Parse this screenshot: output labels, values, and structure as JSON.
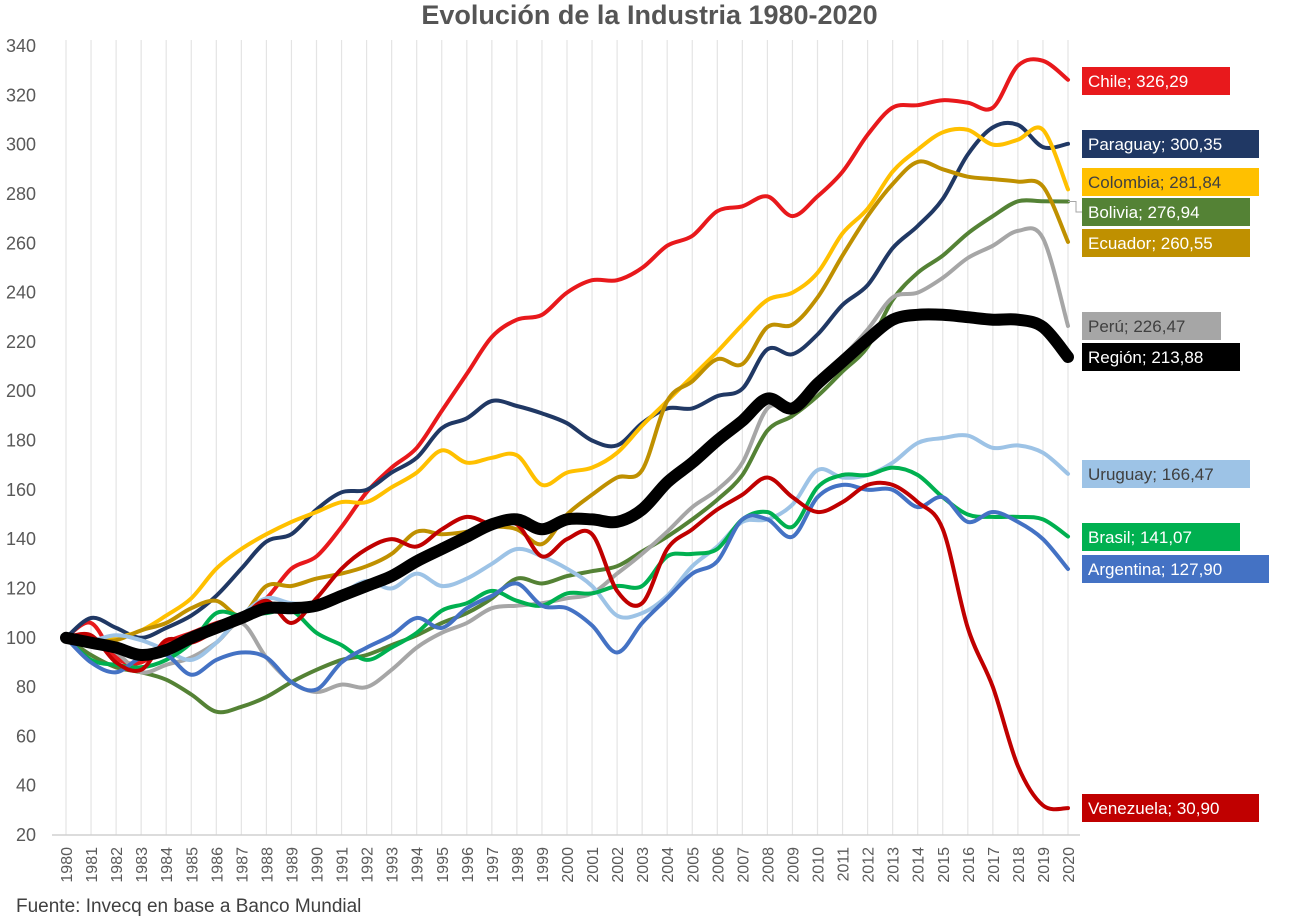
{
  "chart_data": {
    "type": "line",
    "title": "Evolución de la Industria 1980-2020",
    "source": "Fuente: Invecq en base a Banco Mundial",
    "ylim": [
      20,
      340
    ],
    "yticks": [
      20,
      40,
      60,
      80,
      100,
      120,
      140,
      160,
      180,
      200,
      220,
      240,
      260,
      280,
      300,
      320,
      340
    ],
    "x": [
      1980,
      1981,
      1982,
      1983,
      1984,
      1985,
      1986,
      1987,
      1988,
      1989,
      1990,
      1991,
      1992,
      1993,
      1994,
      1995,
      1996,
      1997,
      1998,
      1999,
      2000,
      2001,
      2002,
      2003,
      2004,
      2005,
      2006,
      2007,
      2008,
      2009,
      2010,
      2011,
      2012,
      2013,
      2014,
      2015,
      2016,
      2017,
      2018,
      2019,
      2020
    ],
    "grid": "vertical",
    "legend": "direct labels at line ends",
    "series": [
      {
        "name": "Chile",
        "color": "#e8191c",
        "width": 4,
        "end_label": "Chile;  326,29",
        "values": [
          100,
          106,
          92,
          90,
          98,
          102,
          106,
          109,
          116,
          128,
          133,
          145,
          159,
          169,
          177,
          192,
          207,
          222,
          229,
          231,
          240,
          245,
          245,
          250,
          259,
          263,
          273,
          275,
          279,
          271,
          279,
          289,
          304,
          315,
          316,
          318,
          317,
          315,
          332,
          334,
          326.29
        ]
      },
      {
        "name": "Paraguay",
        "color": "#203864",
        "width": 4,
        "end_label": "Paraguay;  300,35",
        "values": [
          100,
          108,
          104,
          100,
          104,
          109,
          117,
          128,
          139,
          142,
          152,
          159,
          160,
          167,
          173,
          185,
          189,
          196,
          194,
          191,
          187,
          180,
          178,
          187,
          193,
          193,
          198,
          201,
          217,
          215,
          223,
          235,
          243,
          258,
          267,
          278,
          296,
          307,
          308,
          299,
          300.35
        ]
      },
      {
        "name": "Colombia",
        "color": "#ffc000",
        "width": 4,
        "end_label": "Colombia;  281,84",
        "values": [
          100,
          99,
          100,
          103,
          109,
          116,
          128,
          136,
          142,
          147,
          151,
          155,
          155,
          161,
          167,
          176,
          171,
          173,
          174,
          162,
          167,
          169,
          175,
          186,
          196,
          206,
          216,
          227,
          237,
          240,
          248,
          264,
          274,
          289,
          298,
          305,
          306,
          300,
          302,
          306,
          281.84
        ]
      },
      {
        "name": "Bolivia",
        "color": "#548235",
        "width": 4,
        "end_label": "Bolivia;  276,94",
        "values": [
          100,
          93,
          88,
          86,
          83,
          77,
          70,
          72,
          76,
          82,
          87,
          91,
          93,
          97,
          101,
          106,
          110,
          116,
          124,
          122,
          125,
          127,
          129,
          135,
          141,
          148,
          156,
          166,
          184,
          190,
          198,
          208,
          218,
          237,
          248,
          255,
          264,
          271,
          277,
          277,
          276.94
        ]
      },
      {
        "name": "Ecuador",
        "color": "#bf9000",
        "width": 4,
        "end_label": "Ecuador;  260,55",
        "values": [
          100,
          99,
          99,
          103,
          106,
          112,
          115,
          109,
          121,
          121,
          124,
          126,
          129,
          134,
          143,
          142,
          143,
          145,
          144,
          138,
          150,
          158,
          165,
          168,
          196,
          204,
          213,
          211,
          226,
          227,
          238,
          255,
          271,
          284,
          293,
          290,
          287,
          286,
          285,
          283,
          260.55
        ]
      },
      {
        "name": "Perú",
        "color": "#a6a6a6",
        "width": 4,
        "end_label": "Perú;  226,47",
        "values": [
          100,
          99,
          94,
          86,
          89,
          92,
          98,
          106,
          92,
          82,
          78,
          81,
          80,
          87,
          96,
          102,
          106,
          112,
          113,
          114,
          116,
          118,
          126,
          134,
          143,
          153,
          160,
          171,
          193,
          193,
          205,
          214,
          225,
          238,
          240,
          246,
          254,
          259,
          265,
          262,
          226.47
        ]
      },
      {
        "name": "Región",
        "color": "#000000",
        "width": 12,
        "end_label": "Región;  213,88",
        "values": [
          100,
          98,
          96,
          93,
          95,
          100,
          104,
          108,
          112,
          112,
          113,
          117,
          121,
          125,
          131,
          136,
          141,
          146,
          148,
          144,
          148,
          148,
          147,
          152,
          163,
          171,
          180,
          188,
          197,
          193,
          203,
          212,
          221,
          229,
          231,
          231,
          230,
          229,
          229,
          226,
          213.88
        ]
      },
      {
        "name": "Uruguay",
        "color": "#9dc3e6",
        "width": 4,
        "end_label": "Uruguay;  166,47",
        "values": [
          100,
          99,
          101,
          99,
          95,
          91,
          98,
          109,
          116,
          114,
          114,
          118,
          123,
          120,
          126,
          121,
          124,
          130,
          136,
          133,
          128,
          121,
          109,
          110,
          117,
          129,
          137,
          147,
          148,
          154,
          168,
          165,
          166,
          171,
          179,
          181,
          182,
          177,
          178,
          175,
          166.47
        ]
      },
      {
        "name": "Brasil",
        "color": "#00b050",
        "width": 4,
        "end_label": "Brasil;  141,07",
        "values": [
          100,
          91,
          89,
          88,
          91,
          98,
          110,
          109,
          110,
          111,
          102,
          97,
          91,
          96,
          102,
          111,
          114,
          119,
          115,
          113,
          118,
          118,
          121,
          121,
          133,
          134,
          136,
          148,
          151,
          145,
          161,
          166,
          166,
          169,
          166,
          157,
          150,
          149,
          149,
          148,
          141.07
        ]
      },
      {
        "name": "Argentina",
        "color": "#4472c4",
        "width": 4,
        "end_label": "Argentina;  127,90",
        "values": [
          100,
          90,
          86,
          92,
          93,
          85,
          91,
          94,
          92,
          82,
          79,
          90,
          96,
          101,
          108,
          104,
          112,
          117,
          122,
          113,
          112,
          105,
          94,
          106,
          116,
          126,
          131,
          148,
          148,
          141,
          157,
          162,
          160,
          160,
          153,
          157,
          147,
          151,
          147,
          140,
          127.9
        ]
      },
      {
        "name": "Venezuela",
        "color": "#c00000",
        "width": 4,
        "end_label": "Venezuela;  30,90",
        "values": [
          100,
          101,
          90,
          87,
          99,
          98,
          103,
          108,
          115,
          106,
          116,
          128,
          136,
          140,
          137,
          144,
          149,
          146,
          146,
          133,
          140,
          142,
          119,
          114,
          136,
          144,
          152,
          158,
          165,
          157,
          151,
          155,
          162,
          162,
          155,
          144,
          104,
          80,
          48,
          32,
          30.9
        ]
      }
    ]
  }
}
